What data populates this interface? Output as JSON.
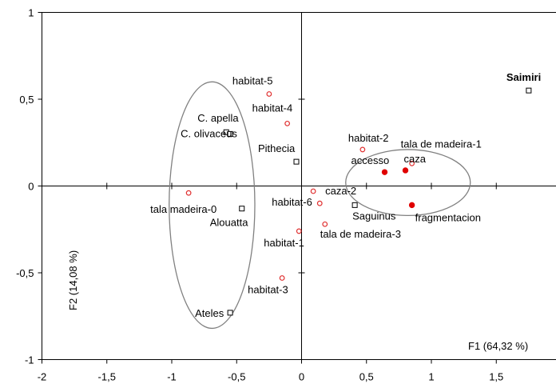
{
  "chart_data": {
    "type": "scatter",
    "title": "",
    "xlabel": "F1 (64,32 %)",
    "ylabel": "F2 (14,08 %)",
    "xlim": [
      -2,
      2
    ],
    "ylim": [
      -1,
      1
    ],
    "x_ticks": [
      -2,
      -1.5,
      -1,
      -0.5,
      0,
      0.5,
      1,
      1.5,
      2
    ],
    "x_tick_labels": [
      "-2",
      "-1,5",
      "-1",
      "-0,5",
      "0",
      "0,5",
      "1",
      "1,5",
      "2"
    ],
    "y_ticks": [
      -1,
      -0.5,
      0,
      0.5,
      1
    ],
    "y_tick_labels": [
      "-1",
      "-0,5",
      "0",
      "0,5",
      "1"
    ],
    "grid": false,
    "series": [
      {
        "marker": "open-square",
        "color": "#000000",
        "points": [
          {
            "label": "Saimiri",
            "x": 1.75,
            "y": 0.55,
            "bold": true
          },
          {
            "label": "C. apella",
            "x": -0.58,
            "y": 0.31
          },
          {
            "label": "C. olivaceus",
            "x": -0.55,
            "y": 0.3
          },
          {
            "label": "Pithecia",
            "x": -0.04,
            "y": 0.14
          },
          {
            "label": "Alouatta",
            "x": -0.46,
            "y": -0.13
          },
          {
            "label": "Saguinus",
            "x": 0.41,
            "y": -0.11
          },
          {
            "label": "Ateles",
            "x": -0.55,
            "y": -0.73
          }
        ]
      },
      {
        "marker": "open-circle",
        "color": "#e03030",
        "points": [
          {
            "label": "habitat-5",
            "x": -0.25,
            "y": 0.53
          },
          {
            "label": "habitat-4",
            "x": -0.11,
            "y": 0.36
          },
          {
            "label": "habitat-2",
            "x": 0.47,
            "y": 0.21
          },
          {
            "label": "tala de madeira-1",
            "x": 0.85,
            "y": 0.13
          },
          {
            "label": "tala madeira-0",
            "x": -0.87,
            "y": -0.04
          },
          {
            "label": "habitat-6",
            "x": 0.14,
            "y": -0.1
          },
          {
            "label": "caza-2",
            "x": 0.09,
            "y": -0.03
          },
          {
            "label": "habitat-1",
            "x": -0.02,
            "y": -0.26
          },
          {
            "label": "tala de madeira-3",
            "x": 0.18,
            "y": -0.22
          },
          {
            "label": "habitat-3",
            "x": -0.15,
            "y": -0.53
          }
        ]
      },
      {
        "marker": "filled-circle",
        "color": "#e00000",
        "points": [
          {
            "label": "accesso",
            "x": 0.64,
            "y": 0.08
          },
          {
            "label": "caza",
            "x": 0.8,
            "y": 0.09
          },
          {
            "label": "fragmentacion",
            "x": 0.85,
            "y": -0.11
          }
        ]
      }
    ],
    "ellipses": [
      {
        "cx": -0.69,
        "cy": -0.11,
        "rx": 0.33,
        "ry": 0.71
      },
      {
        "cx": 0.82,
        "cy": 0.02,
        "rx": 0.48,
        "ry": 0.19
      }
    ]
  }
}
